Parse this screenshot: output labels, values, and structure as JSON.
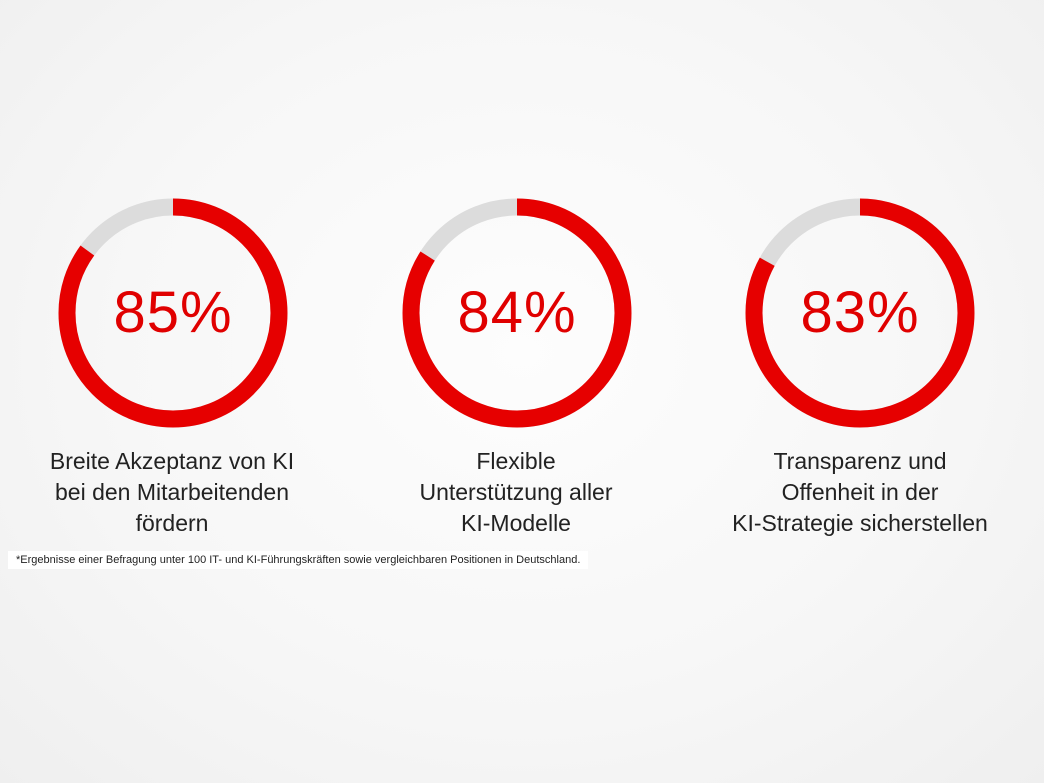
{
  "chart_data": {
    "type": "donut",
    "items": [
      {
        "value": 85,
        "label": "85%",
        "caption": [
          "Breite Akzeptanz von KI",
          "bei den Mitarbeitenden",
          "fördern"
        ]
      },
      {
        "value": 84,
        "label": "84%",
        "caption": [
          "Flexible",
          "Unterstützung aller",
          "KI-Modelle"
        ]
      },
      {
        "value": 83,
        "label": "83%",
        "caption": [
          "Transparenz und",
          "Offenheit in der",
          "KI-Strategie sicherstellen"
        ]
      }
    ],
    "max": 100,
    "colors": {
      "filled": "#e60000",
      "remainder": "#dcdcdc",
      "text": "#e00000"
    }
  },
  "footnote": "*Ergebnisse einer Befragung unter 100 IT- und KI-Führungskräften sowie vergleichbaren Positionen in Deutschland."
}
